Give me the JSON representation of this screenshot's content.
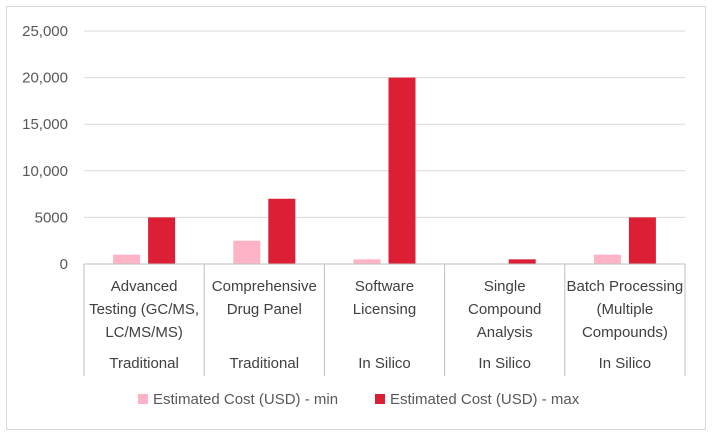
{
  "chart_data": {
    "type": "bar",
    "title": "",
    "xlabel": "",
    "ylabel": "",
    "ylim": [
      0,
      25000
    ],
    "yticks": [
      0,
      5000,
      10000,
      15000,
      20000,
      25000
    ],
    "ytick_labels": [
      "0",
      "5000",
      "10,000",
      "15,000",
      "20,000",
      "25,000"
    ],
    "categories": [
      {
        "label": [
          "Advanced",
          "Testing (GC/MS,",
          "LC/MS/MS)"
        ],
        "group": "Traditional"
      },
      {
        "label": [
          "Comprehensive",
          "Drug Panel"
        ],
        "group": "Traditional"
      },
      {
        "label": [
          "Software",
          "Licensing"
        ],
        "group": "In Silico"
      },
      {
        "label": [
          "Single",
          "Compound",
          "Analysis"
        ],
        "group": "In Silico"
      },
      {
        "label": [
          "Batch Processing",
          "(Multiple",
          "Compounds)"
        ],
        "group": "In Silico"
      }
    ],
    "series": [
      {
        "name": "Estimated Cost (USD) - min",
        "color": "#ffb3c6",
        "values": [
          1000,
          2500,
          500,
          50,
          1000
        ]
      },
      {
        "name": "Estimated Cost (USD) - max",
        "color": "#dc1f35",
        "values": [
          5000,
          7000,
          20000,
          500,
          5000
        ]
      }
    ],
    "grid": true,
    "legend": "bottom"
  }
}
